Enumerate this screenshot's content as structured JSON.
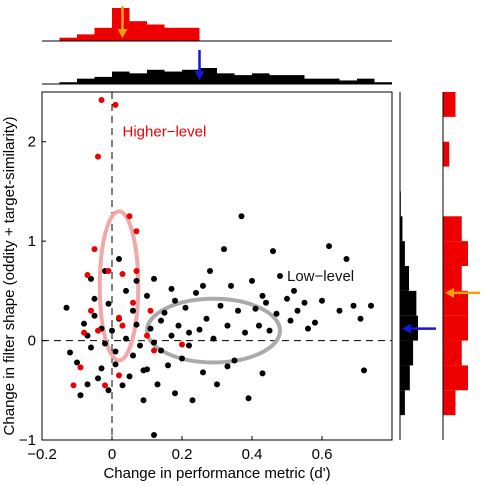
{
  "chart_data": {
    "type": "scatter",
    "xlabel": "Change in performance metric (d')",
    "ylabel": "Change in filter shape (oddity + target-similarity)",
    "xlim": [
      -0.2,
      0.8
    ],
    "ylim": [
      -1,
      2.5
    ],
    "xticks": [
      {
        "value": -0.2,
        "label": "−0.2"
      },
      {
        "value": 0,
        "label": "0"
      },
      {
        "value": 0.2,
        "label": "0.2"
      },
      {
        "value": 0.4,
        "label": "0.4"
      },
      {
        "value": 0.6,
        "label": "0.6"
      }
    ],
    "yticks": [
      {
        "value": -1,
        "label": "−1"
      },
      {
        "value": 0,
        "label": "0"
      },
      {
        "value": 1,
        "label": "1"
      },
      {
        "value": 2,
        "label": "2"
      }
    ],
    "reference_lines": {
      "x": 0,
      "y": 0
    },
    "annotations": [
      {
        "text": "Higher−level",
        "x": 0.03,
        "y": 2.05,
        "color": "#ee0000"
      },
      {
        "text": "Low−level",
        "x": 0.5,
        "y": 0.6,
        "color": "#111111"
      }
    ],
    "colors": {
      "higher": "#ee0000",
      "low": "#000000",
      "higher_ellipse": "#f2a8a8",
      "low_ellipse": "#aaaaaa",
      "higher_arrow": "#f5a00a",
      "low_arrow": "#1515dd"
    },
    "ellipses": [
      {
        "name": "higher",
        "cx": 0.02,
        "cy": 0.55,
        "rx": 0.055,
        "ry": 0.75
      },
      {
        "name": "low",
        "cx": 0.29,
        "cy": 0.1,
        "rx": 0.19,
        "ry": 0.32
      }
    ],
    "series": [
      {
        "group": "low",
        "points": [
          [
            -0.13,
            0.33
          ],
          [
            -0.12,
            -0.12
          ],
          [
            -0.1,
            -0.22
          ],
          [
            -0.09,
            -0.55
          ],
          [
            -0.08,
            0.17
          ],
          [
            -0.07,
            -0.44
          ],
          [
            -0.07,
            0.05
          ],
          [
            -0.06,
            -0.07
          ],
          [
            -0.06,
            0.62
          ],
          [
            -0.05,
            0.42
          ],
          [
            -0.05,
            0.25
          ],
          [
            -0.04,
            -0.38
          ],
          [
            -0.03,
            0.12
          ],
          [
            -0.03,
            -0.28
          ],
          [
            -0.02,
            0.7
          ],
          [
            -0.01,
            -0.5
          ],
          [
            -0.01,
            0.37
          ],
          [
            0.0,
            0.1
          ],
          [
            0.01,
            -0.24
          ],
          [
            0.01,
            -0.11
          ],
          [
            0.02,
            0.82
          ],
          [
            0.02,
            0.22
          ],
          [
            0.03,
            -0.45
          ],
          [
            0.04,
            0.02
          ],
          [
            0.04,
            0.5
          ],
          [
            0.05,
            -0.36
          ],
          [
            0.06,
            -0.15
          ],
          [
            0.06,
            0.3
          ],
          [
            0.07,
            0.6
          ],
          [
            0.08,
            -0.05
          ],
          [
            0.09,
            -0.6
          ],
          [
            0.1,
            0.45
          ],
          [
            0.1,
            -0.29
          ],
          [
            0.11,
            0.12
          ],
          [
            0.12,
            -0.02
          ],
          [
            0.12,
            0.62
          ],
          [
            0.13,
            -0.44
          ],
          [
            0.14,
            0.2
          ],
          [
            0.14,
            -0.1
          ],
          [
            0.15,
            0.28
          ],
          [
            0.16,
            -0.25
          ],
          [
            0.17,
            0.05
          ],
          [
            0.17,
            0.52
          ],
          [
            0.18,
            -0.53
          ],
          [
            0.19,
            0.15
          ],
          [
            0.2,
            -0.18
          ],
          [
            0.21,
            0.33
          ],
          [
            0.22,
            0.08
          ],
          [
            0.23,
            -0.6
          ],
          [
            0.24,
            0.48
          ],
          [
            0.25,
            0.11
          ],
          [
            0.26,
            -0.32
          ],
          [
            0.27,
            0.22
          ],
          [
            0.28,
            0.7
          ],
          [
            0.29,
            0.02
          ],
          [
            0.3,
            -0.44
          ],
          [
            0.31,
            0.35
          ],
          [
            0.32,
            0.92
          ],
          [
            0.33,
            0.15
          ],
          [
            0.34,
            0.55
          ],
          [
            0.35,
            -0.2
          ],
          [
            0.36,
            0.3
          ],
          [
            0.37,
            1.25
          ],
          [
            0.38,
            0.08
          ],
          [
            0.39,
            -0.58
          ],
          [
            0.4,
            0.6
          ],
          [
            0.41,
            0.32
          ],
          [
            0.42,
            0.15
          ],
          [
            0.43,
            0.45
          ],
          [
            0.44,
            0.38
          ],
          [
            0.45,
            0.1
          ],
          [
            0.46,
            0.9
          ],
          [
            0.47,
            0.27
          ],
          [
            0.48,
            0.65
          ],
          [
            0.5,
            0.42
          ],
          [
            0.51,
            0.2
          ],
          [
            0.52,
            0.5
          ],
          [
            0.53,
            0.3
          ],
          [
            0.55,
            0.38
          ],
          [
            0.56,
            0.12
          ],
          [
            0.58,
            0.18
          ],
          [
            0.6,
            0.4
          ],
          [
            0.62,
            0.95
          ],
          [
            0.65,
            0.3
          ],
          [
            0.67,
            0.82
          ],
          [
            0.69,
            0.35
          ],
          [
            0.71,
            0.22
          ],
          [
            0.72,
            -0.3
          ],
          [
            0.74,
            0.35
          ],
          [
            0.12,
            -0.95
          ],
          [
            -0.02,
            -0.03
          ],
          [
            0.07,
            0.16
          ],
          [
            0.33,
            -0.26
          ],
          [
            0.43,
            -0.33
          ],
          [
            0.18,
            0.4
          ],
          [
            0.26,
            0.55
          ],
          [
            0.22,
            -0.05
          ],
          [
            0.09,
            -0.3
          ]
        ]
      },
      {
        "group": "higher",
        "points": [
          [
            -0.03,
            2.42
          ],
          [
            0.01,
            2.37
          ],
          [
            -0.04,
            1.85
          ],
          [
            -0.05,
            0.92
          ],
          [
            -0.07,
            0.66
          ],
          [
            -0.01,
            0.7
          ],
          [
            0.03,
            0.67
          ],
          [
            0.07,
            0.7
          ],
          [
            0.07,
            1.1
          ],
          [
            0.05,
            1.25
          ],
          [
            -0.11,
            -0.45
          ],
          [
            -0.09,
            -0.27
          ],
          [
            -0.08,
            0.08
          ],
          [
            -0.06,
            0.3
          ],
          [
            -0.04,
            0.1
          ],
          [
            -0.02,
            -0.45
          ],
          [
            0.02,
            0.23
          ],
          [
            0.03,
            0.15
          ],
          [
            0.06,
            0.38
          ],
          [
            0.1,
            0.05
          ],
          [
            0.11,
            0.3
          ],
          [
            0.12,
            -0.1
          ],
          [
            0.2,
            -0.04
          ],
          [
            0.02,
            -0.35
          ]
        ]
      }
    ],
    "marginal_x": {
      "bin_edges": [
        -0.2,
        -0.15,
        -0.1,
        -0.05,
        0.0,
        0.05,
        0.1,
        0.15,
        0.2,
        0.25,
        0.3,
        0.35,
        0.4,
        0.45,
        0.5,
        0.55,
        0.6,
        0.65,
        0.7,
        0.75,
        0.8
      ],
      "low_counts": [
        0,
        1,
        3,
        4,
        7,
        6,
        8,
        7,
        8,
        9,
        6,
        5,
        6,
        5,
        5,
        3,
        3,
        2,
        3,
        1
      ],
      "higher_counts": [
        0,
        1,
        2,
        4,
        10,
        6,
        5,
        4,
        4,
        0,
        0,
        0,
        0,
        0,
        0,
        0,
        0,
        0,
        0,
        0
      ],
      "low_mean": 0.25,
      "higher_mean": 0.03
    },
    "marginal_y": {
      "bin_edges": [
        -0.75,
        -0.5,
        -0.25,
        0.0,
        0.25,
        0.5,
        0.75,
        1.0,
        1.25,
        1.5,
        1.75,
        2.0,
        2.25,
        2.5
      ],
      "low_counts": [
        6,
        12,
        16,
        22,
        20,
        11,
        6,
        3,
        1,
        0,
        0,
        0,
        0
      ],
      "higher_counts": [
        2,
        4,
        3,
        4,
        4,
        3,
        4,
        3,
        0,
        0,
        1,
        0,
        2
      ],
      "low_mean": 0.12,
      "higher_mean": 0.48
    }
  }
}
